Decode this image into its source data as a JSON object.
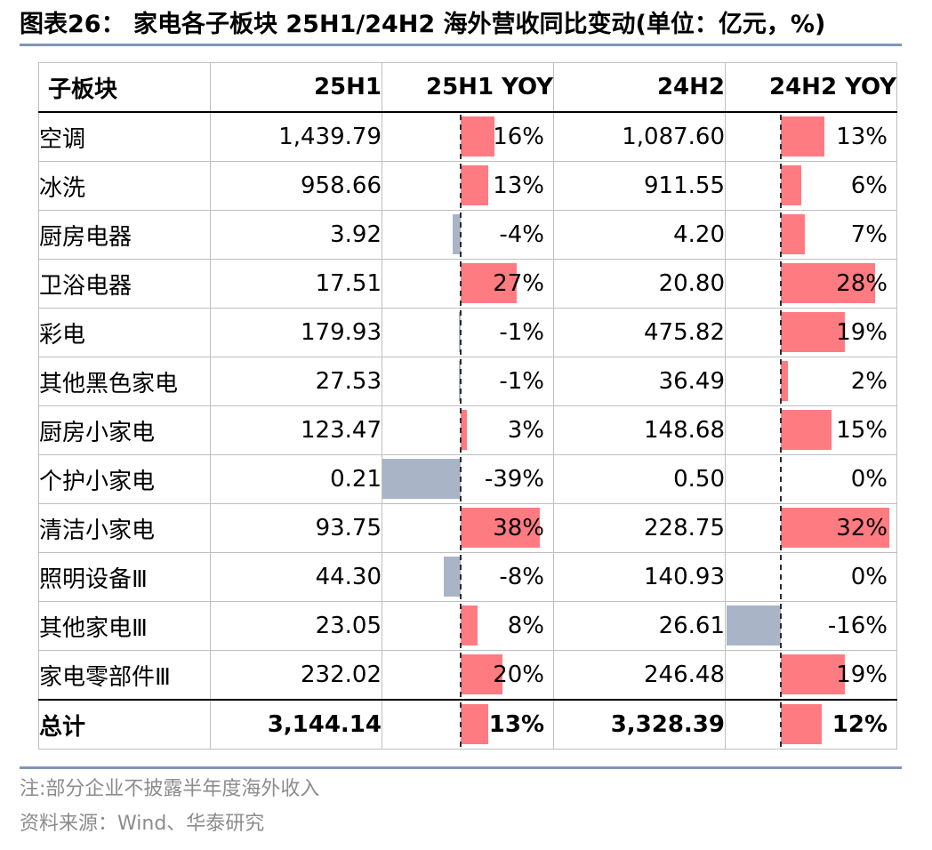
{
  "title": "图表26：  家电各子板块 25H1/24H2 海外营收同比变动(单位：亿元，%)",
  "colors": {
    "positive_bar": "#ff7b82",
    "negative_bar": "#a9b5c6",
    "rule": "#7f95b8"
  },
  "table": {
    "headers": [
      "子板块",
      "25H1",
      "25H1 YOY",
      "24H2",
      "24H2 YOY"
    ],
    "rows": [
      {
        "name": "空调",
        "h1_25": "1,439.79",
        "yoy_25h1": "16%",
        "yoy_25h1_value": 16,
        "h2_24": "1,087.60",
        "yoy_24h2": "13%",
        "yoy_24h2_value": 13
      },
      {
        "name": "冰洗",
        "h1_25": "958.66",
        "yoy_25h1": "13%",
        "yoy_25h1_value": 13,
        "h2_24": "911.55",
        "yoy_24h2": "6%",
        "yoy_24h2_value": 6
      },
      {
        "name": "厨房电器",
        "h1_25": "3.92",
        "yoy_25h1": "-4%",
        "yoy_25h1_value": -4,
        "h2_24": "4.20",
        "yoy_24h2": "7%",
        "yoy_24h2_value": 7
      },
      {
        "name": "卫浴电器",
        "h1_25": "17.51",
        "yoy_25h1": "27%",
        "yoy_25h1_value": 27,
        "h2_24": "20.80",
        "yoy_24h2": "28%",
        "yoy_24h2_value": 28
      },
      {
        "name": "彩电",
        "h1_25": "179.93",
        "yoy_25h1": "-1%",
        "yoy_25h1_value": -1,
        "h2_24": "475.82",
        "yoy_24h2": "19%",
        "yoy_24h2_value": 19
      },
      {
        "name": "其他黑色家电",
        "h1_25": "27.53",
        "yoy_25h1": "-1%",
        "yoy_25h1_value": -1,
        "h2_24": "36.49",
        "yoy_24h2": "2%",
        "yoy_24h2_value": 2
      },
      {
        "name": "厨房小家电",
        "h1_25": "123.47",
        "yoy_25h1": "3%",
        "yoy_25h1_value": 3,
        "h2_24": "148.68",
        "yoy_24h2": "15%",
        "yoy_24h2_value": 15
      },
      {
        "name": "个护小家电",
        "h1_25": "0.21",
        "yoy_25h1": "-39%",
        "yoy_25h1_value": -39,
        "h2_24": "0.50",
        "yoy_24h2": "0%",
        "yoy_24h2_value": 0
      },
      {
        "name": "清洁小家电",
        "h1_25": "93.75",
        "yoy_25h1": "38%",
        "yoy_25h1_value": 38,
        "h2_24": "228.75",
        "yoy_24h2": "32%",
        "yoy_24h2_value": 32
      },
      {
        "name": "照明设备Ⅲ",
        "h1_25": "44.30",
        "yoy_25h1": "-8%",
        "yoy_25h1_value": -8,
        "h2_24": "140.93",
        "yoy_24h2": "0%",
        "yoy_24h2_value": 0
      },
      {
        "name": "其他家电Ⅲ",
        "h1_25": "23.05",
        "yoy_25h1": "8%",
        "yoy_25h1_value": 8,
        "h2_24": "26.61",
        "yoy_24h2": "-16%",
        "yoy_24h2_value": -16
      },
      {
        "name": "家电零部件Ⅲ",
        "h1_25": "232.02",
        "yoy_25h1": "20%",
        "yoy_25h1_value": 20,
        "h2_24": "246.48",
        "yoy_24h2": "19%",
        "yoy_24h2_value": 19
      },
      {
        "name": "总计",
        "h1_25": "3,144.14",
        "yoy_25h1": "13%",
        "yoy_25h1_value": 13,
        "h2_24": "3,328.39",
        "yoy_24h2": "12%",
        "yoy_24h2_value": 12,
        "is_total": true
      }
    ]
  },
  "note": "注:部分企业不披露半年度海外收入",
  "source": "资料来源：Wind、华泰研究"
}
